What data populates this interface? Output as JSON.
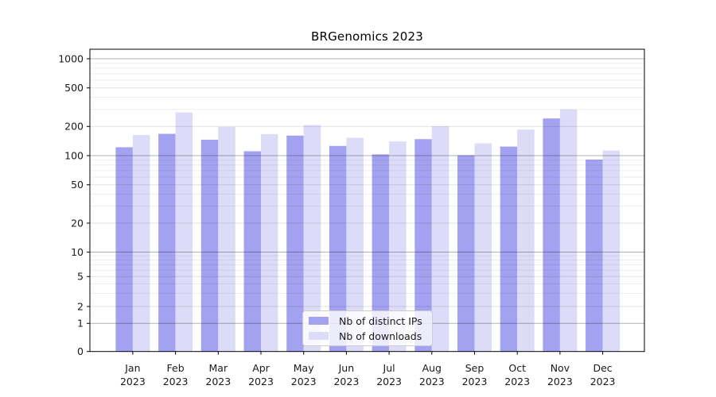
{
  "chart_data": {
    "type": "bar",
    "title": "BRGenomics 2023",
    "year_label": "2023",
    "categories": [
      "Jan",
      "Feb",
      "Mar",
      "Apr",
      "May",
      "Jun",
      "Jul",
      "Aug",
      "Sep",
      "Oct",
      "Nov",
      "Dec"
    ],
    "series": [
      {
        "name": "Nb of distinct IPs",
        "color": "#a2a2f0",
        "values": [
          122,
          168,
          146,
          111,
          161,
          126,
          103,
          148,
          101,
          124,
          242,
          91
        ]
      },
      {
        "name": "Nb of downloads",
        "color": "#dcdcf9",
        "values": [
          163,
          279,
          198,
          167,
          207,
          153,
          140,
          201,
          134,
          186,
          300,
          113
        ]
      }
    ],
    "y_scale": "symlog",
    "y_ticks": [
      0,
      1,
      2,
      5,
      10,
      20,
      50,
      100,
      200,
      500,
      1000
    ],
    "ylim": [
      0,
      1250
    ],
    "xlabel": "",
    "ylabel": "",
    "grid": "both",
    "legend_position": "lower center",
    "background_color": "#ffffff",
    "text_color": "#1a1a1a"
  }
}
